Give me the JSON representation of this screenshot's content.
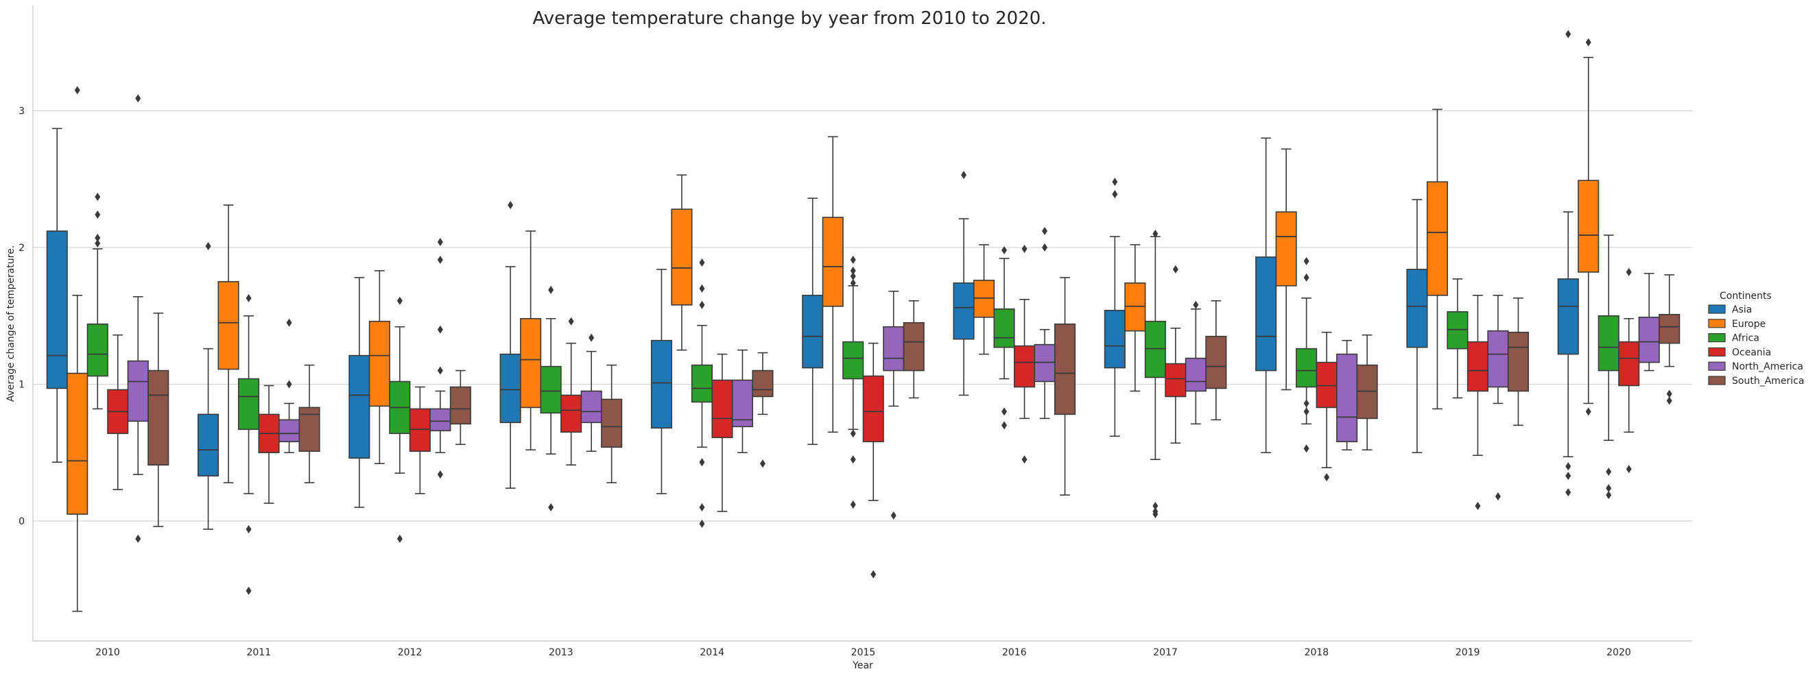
{
  "chart_data": {
    "type": "box",
    "title": "Average temperature change by year from 2010 to 2020.",
    "xlabel": "Year",
    "ylabel": "Average change of temperature.",
    "categories": [
      "2010",
      "2011",
      "2012",
      "2013",
      "2014",
      "2015",
      "2016",
      "2017",
      "2018",
      "2019",
      "2020"
    ],
    "y_ticks": [
      0,
      1,
      2,
      3
    ],
    "ylim": [
      -0.87,
      3.75
    ],
    "grid": "horizontal",
    "legend": {
      "title": "Continents",
      "placement": "right"
    },
    "series": [
      {
        "name": "Asia",
        "color": "#1f77b4",
        "boxes": [
          {
            "whislo": 0.43,
            "q1": 0.97,
            "med": 1.21,
            "q3": 2.12,
            "whishi": 2.87,
            "fliers": []
          },
          {
            "whislo": -0.06,
            "q1": 0.33,
            "med": 0.52,
            "q3": 0.78,
            "whishi": 1.26,
            "fliers": [
              2.01
            ]
          },
          {
            "whislo": 0.1,
            "q1": 0.46,
            "med": 0.92,
            "q3": 1.21,
            "whishi": 1.78,
            "fliers": []
          },
          {
            "whislo": 0.24,
            "q1": 0.72,
            "med": 0.96,
            "q3": 1.22,
            "whishi": 1.86,
            "fliers": [
              2.31
            ]
          },
          {
            "whislo": 0.2,
            "q1": 0.68,
            "med": 1.01,
            "q3": 1.32,
            "whishi": 1.84,
            "fliers": []
          },
          {
            "whislo": 0.56,
            "q1": 1.12,
            "med": 1.35,
            "q3": 1.65,
            "whishi": 2.36,
            "fliers": []
          },
          {
            "whislo": 0.92,
            "q1": 1.33,
            "med": 1.56,
            "q3": 1.74,
            "whishi": 2.21,
            "fliers": [
              2.53
            ]
          },
          {
            "whislo": 0.62,
            "q1": 1.12,
            "med": 1.28,
            "q3": 1.54,
            "whishi": 2.08,
            "fliers": [
              2.39,
              2.48
            ]
          },
          {
            "whislo": 0.5,
            "q1": 1.1,
            "med": 1.35,
            "q3": 1.93,
            "whishi": 2.8,
            "fliers": []
          },
          {
            "whislo": 0.5,
            "q1": 1.27,
            "med": 1.57,
            "q3": 1.84,
            "whishi": 2.35,
            "fliers": []
          },
          {
            "whislo": 0.47,
            "q1": 1.22,
            "med": 1.57,
            "q3": 1.77,
            "whishi": 2.26,
            "fliers": [
              0.21,
              0.33,
              0.4,
              3.56
            ]
          }
        ]
      },
      {
        "name": "Europe",
        "color": "#ff7f0e",
        "boxes": [
          {
            "whislo": -0.66,
            "q1": 0.05,
            "med": 0.44,
            "q3": 1.08,
            "whishi": 1.65,
            "fliers": [
              3.15
            ]
          },
          {
            "whislo": 0.28,
            "q1": 1.11,
            "med": 1.45,
            "q3": 1.75,
            "whishi": 2.31,
            "fliers": []
          },
          {
            "whislo": 0.42,
            "q1": 0.84,
            "med": 1.21,
            "q3": 1.46,
            "whishi": 1.83,
            "fliers": []
          },
          {
            "whislo": 0.52,
            "q1": 0.83,
            "med": 1.18,
            "q3": 1.48,
            "whishi": 2.12,
            "fliers": []
          },
          {
            "whislo": 1.25,
            "q1": 1.58,
            "med": 1.85,
            "q3": 2.28,
            "whishi": 2.53,
            "fliers": []
          },
          {
            "whislo": 0.65,
            "q1": 1.57,
            "med": 1.86,
            "q3": 2.22,
            "whishi": 2.81,
            "fliers": []
          },
          {
            "whislo": 1.22,
            "q1": 1.49,
            "med": 1.63,
            "q3": 1.76,
            "whishi": 2.02,
            "fliers": []
          },
          {
            "whislo": 0.95,
            "q1": 1.39,
            "med": 1.57,
            "q3": 1.74,
            "whishi": 2.02,
            "fliers": []
          },
          {
            "whislo": 0.96,
            "q1": 1.72,
            "med": 2.08,
            "q3": 2.26,
            "whishi": 2.72,
            "fliers": []
          },
          {
            "whislo": 0.82,
            "q1": 1.65,
            "med": 2.11,
            "q3": 2.48,
            "whishi": 3.01,
            "fliers": []
          },
          {
            "whislo": 0.86,
            "q1": 1.82,
            "med": 2.09,
            "q3": 2.49,
            "whishi": 3.39,
            "fliers": [
              0.8,
              3.5
            ]
          }
        ]
      },
      {
        "name": "Africa",
        "color": "#2ca02c",
        "boxes": [
          {
            "whislo": 0.82,
            "q1": 1.06,
            "med": 1.22,
            "q3": 1.44,
            "whishi": 1.99,
            "fliers": [
              2.03,
              2.07,
              2.24,
              2.37
            ]
          },
          {
            "whislo": 0.2,
            "q1": 0.67,
            "med": 0.91,
            "q3": 1.04,
            "whishi": 1.5,
            "fliers": [
              -0.51,
              -0.06,
              1.63
            ]
          },
          {
            "whislo": 0.35,
            "q1": 0.64,
            "med": 0.83,
            "q3": 1.02,
            "whishi": 1.42,
            "fliers": [
              -0.13,
              1.61
            ]
          },
          {
            "whislo": 0.49,
            "q1": 0.79,
            "med": 0.95,
            "q3": 1.13,
            "whishi": 1.48,
            "fliers": [
              0.1,
              1.69
            ]
          },
          {
            "whislo": 0.54,
            "q1": 0.87,
            "med": 0.97,
            "q3": 1.14,
            "whishi": 1.43,
            "fliers": [
              -0.02,
              0.1,
              0.43,
              1.58,
              1.7,
              1.89
            ]
          },
          {
            "whislo": 0.67,
            "q1": 1.04,
            "med": 1.19,
            "q3": 1.31,
            "whishi": 1.72,
            "fliers": [
              0.12,
              0.45,
              0.64,
              1.74,
              1.79,
              1.83,
              1.91
            ]
          },
          {
            "whislo": 1.04,
            "q1": 1.27,
            "med": 1.34,
            "q3": 1.55,
            "whishi": 1.92,
            "fliers": [
              0.7,
              0.8,
              1.98
            ]
          },
          {
            "whislo": 0.45,
            "q1": 1.05,
            "med": 1.26,
            "q3": 1.46,
            "whishi": 2.08,
            "fliers": [
              0.05,
              0.07,
              0.11,
              2.1
            ]
          },
          {
            "whislo": 0.71,
            "q1": 0.98,
            "med": 1.1,
            "q3": 1.26,
            "whishi": 1.63,
            "fliers": [
              0.53,
              0.8,
              0.86,
              1.78,
              1.9
            ]
          },
          {
            "whislo": 0.9,
            "q1": 1.26,
            "med": 1.4,
            "q3": 1.53,
            "whishi": 1.77,
            "fliers": []
          },
          {
            "whislo": 0.59,
            "q1": 1.1,
            "med": 1.27,
            "q3": 1.5,
            "whishi": 2.09,
            "fliers": [
              0.19,
              0.24,
              0.36
            ]
          }
        ]
      },
      {
        "name": "Oceania",
        "color": "#d62728",
        "boxes": [
          {
            "whislo": 0.23,
            "q1": 0.64,
            "med": 0.8,
            "q3": 0.96,
            "whishi": 1.36,
            "fliers": []
          },
          {
            "whislo": 0.13,
            "q1": 0.5,
            "med": 0.64,
            "q3": 0.78,
            "whishi": 0.99,
            "fliers": []
          },
          {
            "whislo": 0.2,
            "q1": 0.51,
            "med": 0.67,
            "q3": 0.82,
            "whishi": 0.98,
            "fliers": []
          },
          {
            "whislo": 0.41,
            "q1": 0.65,
            "med": 0.81,
            "q3": 0.92,
            "whishi": 1.3,
            "fliers": [
              1.46
            ]
          },
          {
            "whislo": 0.07,
            "q1": 0.61,
            "med": 0.75,
            "q3": 1.03,
            "whishi": 1.22,
            "fliers": []
          },
          {
            "whislo": 0.15,
            "q1": 0.58,
            "med": 0.8,
            "q3": 1.06,
            "whishi": 1.3,
            "fliers": [
              -0.39
            ]
          },
          {
            "whislo": 0.75,
            "q1": 0.98,
            "med": 1.16,
            "q3": 1.28,
            "whishi": 1.62,
            "fliers": [
              0.45,
              1.99
            ]
          },
          {
            "whislo": 0.57,
            "q1": 0.91,
            "med": 1.04,
            "q3": 1.15,
            "whishi": 1.41,
            "fliers": [
              1.84
            ]
          },
          {
            "whislo": 0.39,
            "q1": 0.83,
            "med": 0.99,
            "q3": 1.16,
            "whishi": 1.38,
            "fliers": [
              0.32
            ]
          },
          {
            "whislo": 0.48,
            "q1": 0.95,
            "med": 1.1,
            "q3": 1.31,
            "whishi": 1.65,
            "fliers": [
              0.11
            ]
          },
          {
            "whislo": 0.65,
            "q1": 0.99,
            "med": 1.19,
            "q3": 1.31,
            "whishi": 1.48,
            "fliers": [
              0.38,
              1.82
            ]
          }
        ]
      },
      {
        "name": "North_America",
        "color": "#9467bd",
        "boxes": [
          {
            "whislo": 0.34,
            "q1": 0.73,
            "med": 1.02,
            "q3": 1.17,
            "whishi": 1.64,
            "fliers": [
              -0.13,
              3.09
            ]
          },
          {
            "whislo": 0.5,
            "q1": 0.58,
            "med": 0.64,
            "q3": 0.74,
            "whishi": 0.86,
            "fliers": [
              1.0,
              1.45
            ]
          },
          {
            "whislo": 0.5,
            "q1": 0.66,
            "med": 0.73,
            "q3": 0.82,
            "whishi": 0.95,
            "fliers": [
              0.34,
              1.1,
              1.4,
              1.91,
              2.04
            ]
          },
          {
            "whislo": 0.51,
            "q1": 0.72,
            "med": 0.8,
            "q3": 0.95,
            "whishi": 1.24,
            "fliers": [
              1.34
            ]
          },
          {
            "whislo": 0.5,
            "q1": 0.69,
            "med": 0.74,
            "q3": 1.03,
            "whishi": 1.25,
            "fliers": []
          },
          {
            "whislo": 0.84,
            "q1": 1.1,
            "med": 1.19,
            "q3": 1.42,
            "whishi": 1.68,
            "fliers": [
              0.04
            ]
          },
          {
            "whislo": 0.75,
            "q1": 1.02,
            "med": 1.16,
            "q3": 1.29,
            "whishi": 1.4,
            "fliers": [
              2.0,
              2.12
            ]
          },
          {
            "whislo": 0.71,
            "q1": 0.95,
            "med": 1.02,
            "q3": 1.19,
            "whishi": 1.55,
            "fliers": [
              1.58
            ]
          },
          {
            "whislo": 0.52,
            "q1": 0.58,
            "med": 0.76,
            "q3": 1.22,
            "whishi": 1.32,
            "fliers": []
          },
          {
            "whislo": 0.86,
            "q1": 0.98,
            "med": 1.22,
            "q3": 1.39,
            "whishi": 1.65,
            "fliers": [
              0.18
            ]
          },
          {
            "whislo": 1.1,
            "q1": 1.16,
            "med": 1.31,
            "q3": 1.49,
            "whishi": 1.81,
            "fliers": []
          }
        ]
      },
      {
        "name": "South_America",
        "color": "#8c564b",
        "boxes": [
          {
            "whislo": -0.04,
            "q1": 0.41,
            "med": 0.92,
            "q3": 1.1,
            "whishi": 1.52,
            "fliers": []
          },
          {
            "whislo": 0.28,
            "q1": 0.51,
            "med": 0.78,
            "q3": 0.83,
            "whishi": 1.14,
            "fliers": []
          },
          {
            "whislo": 0.56,
            "q1": 0.71,
            "med": 0.82,
            "q3": 0.98,
            "whishi": 1.1,
            "fliers": []
          },
          {
            "whislo": 0.28,
            "q1": 0.54,
            "med": 0.69,
            "q3": 0.89,
            "whishi": 1.14,
            "fliers": []
          },
          {
            "whislo": 0.78,
            "q1": 0.91,
            "med": 0.96,
            "q3": 1.1,
            "whishi": 1.23,
            "fliers": [
              0.42
            ]
          },
          {
            "whislo": 0.9,
            "q1": 1.1,
            "med": 1.31,
            "q3": 1.45,
            "whishi": 1.61,
            "fliers": []
          },
          {
            "whislo": 0.19,
            "q1": 0.78,
            "med": 1.08,
            "q3": 1.44,
            "whishi": 1.78,
            "fliers": []
          },
          {
            "whislo": 0.74,
            "q1": 0.97,
            "med": 1.13,
            "q3": 1.35,
            "whishi": 1.61,
            "fliers": []
          },
          {
            "whislo": 0.52,
            "q1": 0.75,
            "med": 0.95,
            "q3": 1.14,
            "whishi": 1.36,
            "fliers": []
          },
          {
            "whislo": 0.7,
            "q1": 0.95,
            "med": 1.27,
            "q3": 1.38,
            "whishi": 1.63,
            "fliers": []
          },
          {
            "whislo": 1.13,
            "q1": 1.3,
            "med": 1.42,
            "q3": 1.51,
            "whishi": 1.8,
            "fliers": [
              0.88,
              0.93
            ]
          }
        ]
      }
    ]
  }
}
